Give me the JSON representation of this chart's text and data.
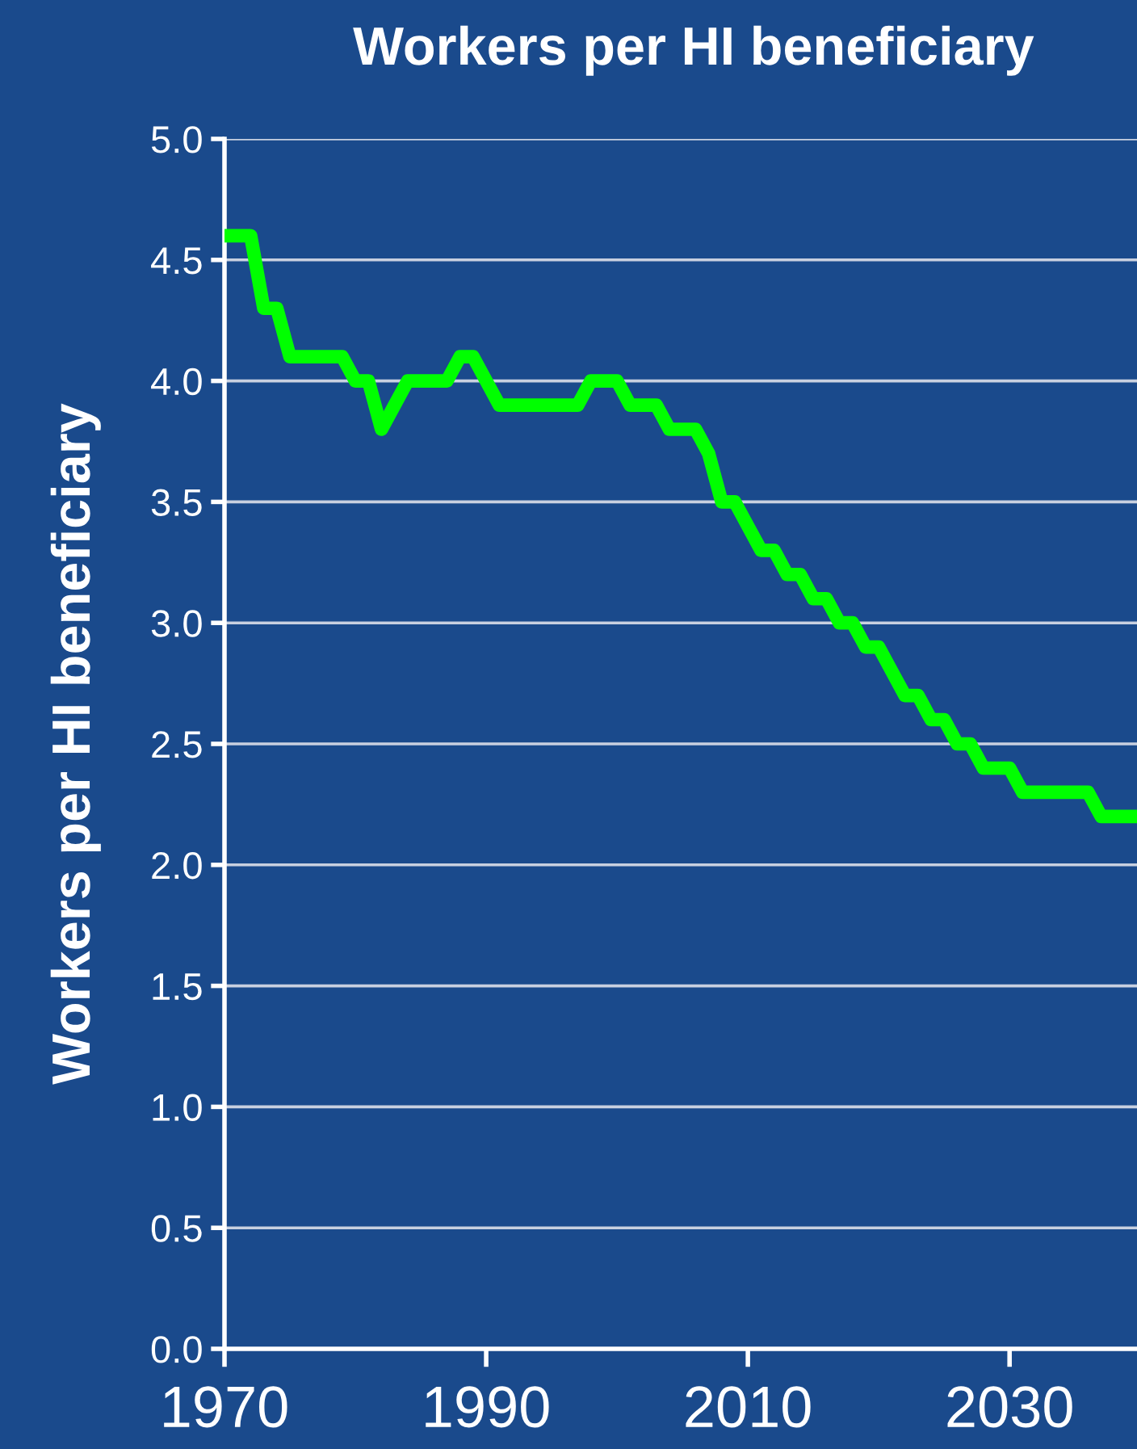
{
  "chart_data": {
    "type": "line",
    "title": "Workers per HI beneficiary",
    "ylabel": "Workers per HI beneficiary",
    "x": [
      1970,
      1971,
      1972,
      1973,
      1974,
      1975,
      1976,
      1977,
      1978,
      1979,
      1980,
      1981,
      1982,
      1983,
      1984,
      1985,
      1986,
      1987,
      1988,
      1989,
      1990,
      1991,
      1992,
      1993,
      1994,
      1995,
      1996,
      1997,
      1998,
      1999,
      2000,
      2001,
      2002,
      2003,
      2004,
      2005,
      2006,
      2007,
      2008,
      2009,
      2010,
      2011,
      2012,
      2013,
      2014,
      2015,
      2016,
      2017,
      2018,
      2019,
      2020,
      2021,
      2022,
      2023,
      2024,
      2025,
      2026,
      2027,
      2028,
      2029,
      2030,
      2031,
      2032,
      2033,
      2034,
      2035,
      2036,
      2037,
      2038,
      2039,
      2040
    ],
    "series": [
      {
        "color": "#00ff00",
        "values": [
          4.6,
          4.6,
          4.6,
          4.3,
          4.3,
          4.1,
          4.1,
          4.1,
          4.1,
          4.1,
          4.0,
          4.0,
          3.8,
          3.9,
          4.0,
          4.0,
          4.0,
          4.0,
          4.1,
          4.1,
          4.0,
          3.9,
          3.9,
          3.9,
          3.9,
          3.9,
          3.9,
          3.9,
          4.0,
          4.0,
          4.0,
          3.9,
          3.9,
          3.9,
          3.8,
          3.8,
          3.8,
          3.7,
          3.5,
          3.5,
          3.4,
          3.3,
          3.3,
          3.2,
          3.2,
          3.1,
          3.1,
          3.0,
          3.0,
          2.9,
          2.9,
          2.8,
          2.7,
          2.7,
          2.6,
          2.6,
          2.5,
          2.5,
          2.4,
          2.4,
          2.4,
          2.3,
          2.3,
          2.3,
          2.3,
          2.3,
          2.3,
          2.2,
          2.2,
          2.2,
          2.2
        ]
      }
    ],
    "xlim": [
      1970,
      2040
    ],
    "xticks": [
      1970,
      1990,
      2010,
      2030
    ],
    "ylim": [
      0,
      5
    ],
    "yticks": [
      {
        "value": 0,
        "label": "0.0"
      },
      0.5,
      {
        "value": 1,
        "label": "1.0"
      },
      1.5,
      {
        "value": 2,
        "label": "2.0"
      },
      2.5,
      {
        "value": 3,
        "label": "3.0"
      },
      3.5,
      {
        "value": 4,
        "label": "4.0"
      },
      4.5,
      {
        "value": 5,
        "label": "5.0"
      }
    ],
    "grid": "y",
    "marker": "none",
    "line_style": "solid"
  }
}
